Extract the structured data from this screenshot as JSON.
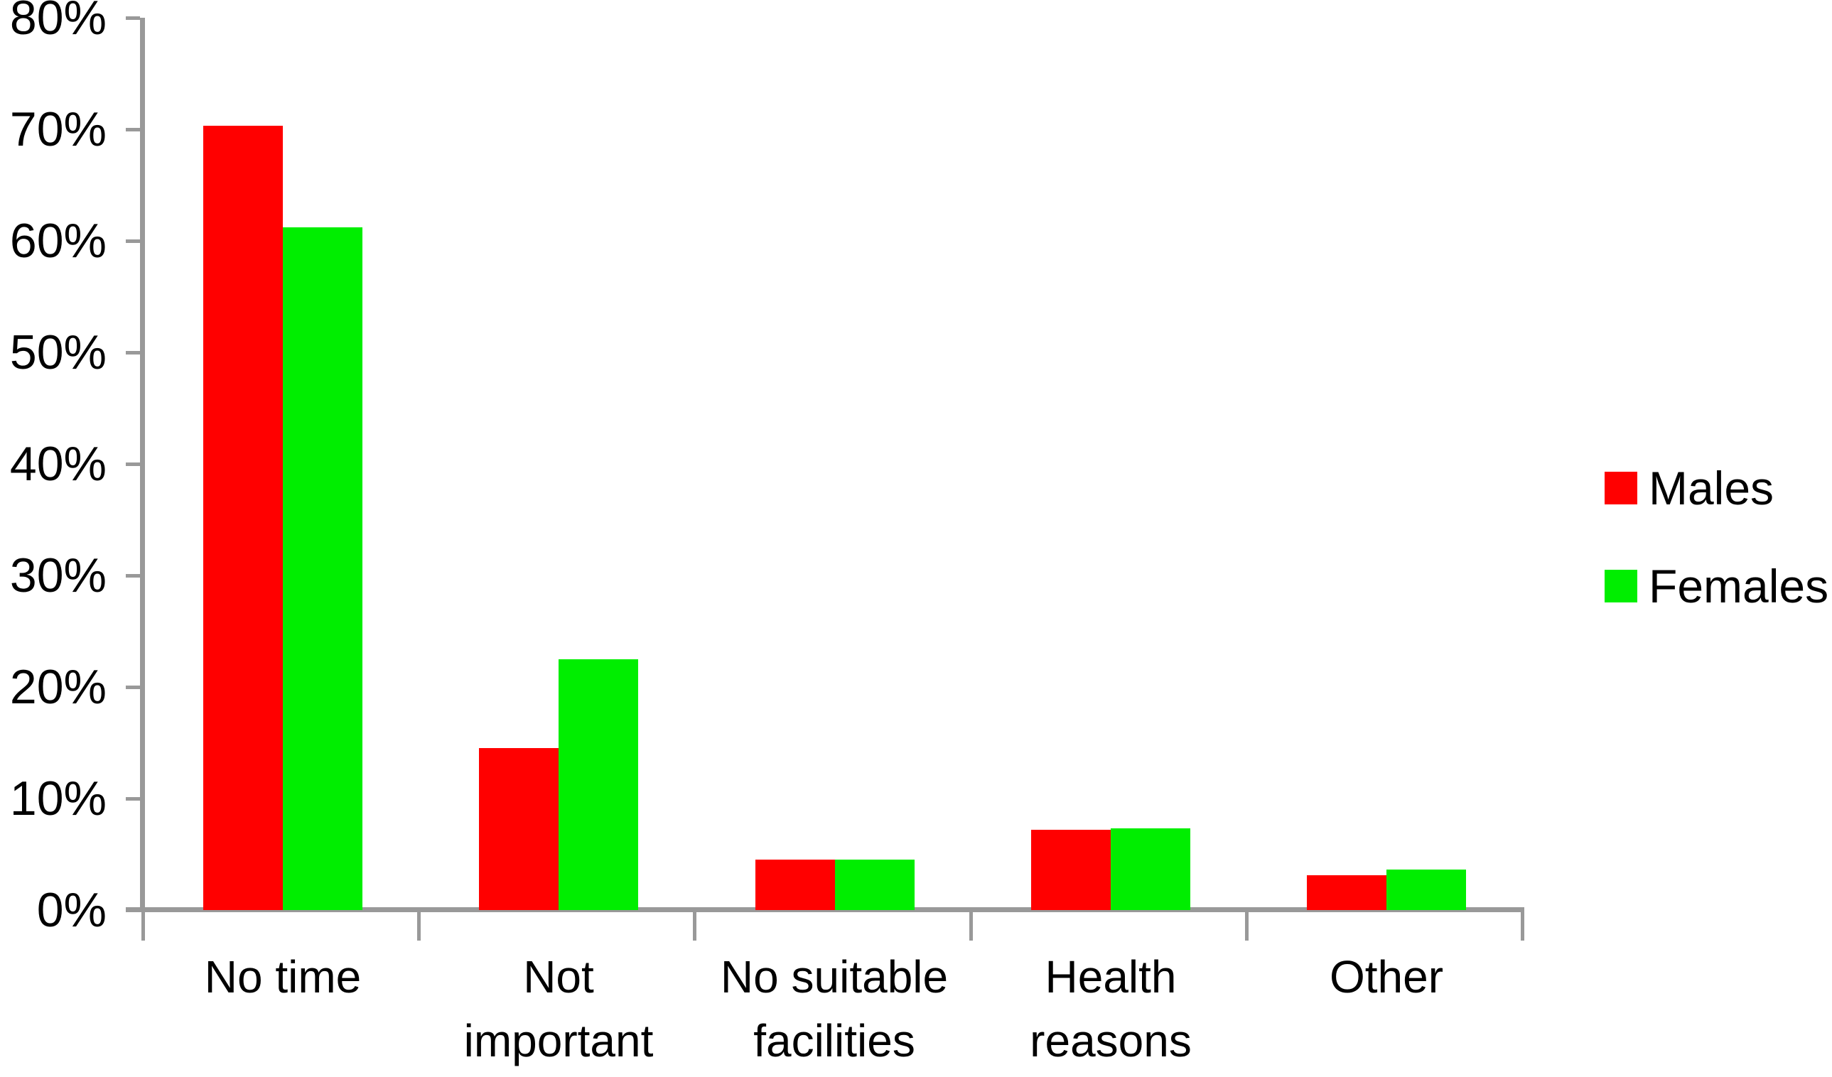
{
  "chart_data": {
    "type": "bar",
    "title": "",
    "categories": [
      "No time",
      "Not important",
      "No suitable facilities",
      "Health reasons",
      "Other"
    ],
    "category_label_lines": [
      [
        "No time"
      ],
      [
        "Not",
        "important"
      ],
      [
        "No suitable",
        "facilities"
      ],
      [
        "Health",
        "reasons"
      ],
      [
        "Other"
      ]
    ],
    "series": [
      {
        "name": "Males",
        "color": "#FF0000",
        "values": [
          70.3,
          14.5,
          4.5,
          7.2,
          3.1
        ]
      },
      {
        "name": "Females",
        "color": "#00EE00",
        "values": [
          61.2,
          22.5,
          4.5,
          7.3,
          3.6
        ]
      }
    ],
    "xlabel": "",
    "ylabel": "",
    "ylim": [
      0,
      80
    ],
    "ytick_step": 10,
    "yticks": [
      "0%",
      "10%",
      "20%",
      "30%",
      "40%",
      "50%",
      "60%",
      "70%",
      "80%"
    ],
    "grid": false,
    "legend_position": "right",
    "axis_color": "#999999",
    "text_color": "#000000"
  }
}
